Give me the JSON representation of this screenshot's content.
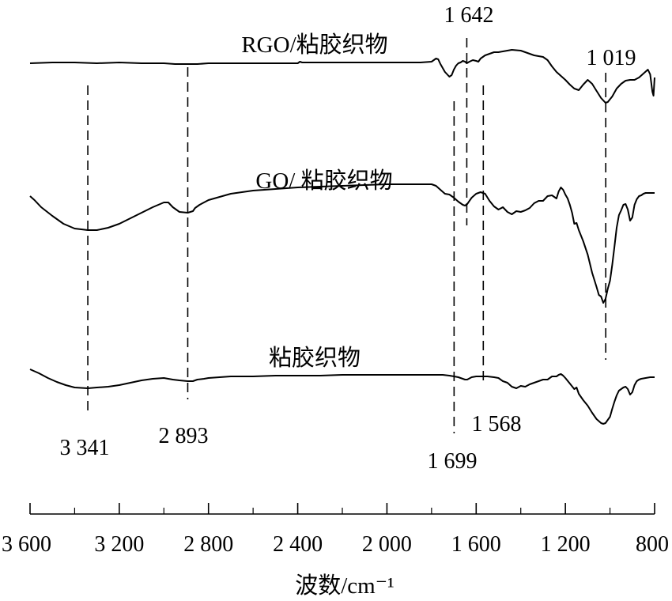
{
  "chart_data": {
    "type": "line",
    "title": "",
    "xlabel": "波数/cm⁻¹",
    "ylabel": "",
    "xlim": [
      3600,
      800
    ],
    "x_reversed": true,
    "grid": false,
    "x_ticks": [
      3600,
      3200,
      2800,
      2400,
      2000,
      1600,
      1200,
      800
    ],
    "x_tick_labels": [
      "3 600",
      "3 200",
      "2 800",
      "2 400",
      "2 000",
      "1 600",
      "1 200",
      "800"
    ],
    "x_minor_ticks": [
      3400,
      3000,
      2600,
      2200,
      1800,
      1400,
      1000
    ],
    "series": [
      {
        "name": "RGO/粘胶织物",
        "points": [
          [
            3600,
            72
          ],
          [
            3500,
            71
          ],
          [
            3400,
            71
          ],
          [
            3300,
            72
          ],
          [
            3200,
            71
          ],
          [
            3100,
            72
          ],
          [
            3000,
            72
          ],
          [
            2950,
            73
          ],
          [
            2900,
            73
          ],
          [
            2850,
            73
          ],
          [
            2800,
            72
          ],
          [
            2700,
            72
          ],
          [
            2600,
            72
          ],
          [
            2500,
            72
          ],
          [
            2400,
            72
          ],
          [
            2390,
            70
          ],
          [
            2380,
            71
          ],
          [
            2360,
            71
          ],
          [
            2300,
            71
          ],
          [
            2200,
            71
          ],
          [
            2100,
            71
          ],
          [
            2000,
            71
          ],
          [
            1950,
            71
          ],
          [
            1900,
            71
          ],
          [
            1850,
            71
          ],
          [
            1800,
            70
          ],
          [
            1780,
            66
          ],
          [
            1770,
            67
          ],
          [
            1760,
            73
          ],
          [
            1740,
            83
          ],
          [
            1720,
            89
          ],
          [
            1710,
            87
          ],
          [
            1700,
            80
          ],
          [
            1690,
            75
          ],
          [
            1680,
            72
          ],
          [
            1670,
            71
          ],
          [
            1660,
            69
          ],
          [
            1650,
            70
          ],
          [
            1642,
            72
          ],
          [
            1630,
            70
          ],
          [
            1615,
            68
          ],
          [
            1600,
            69
          ],
          [
            1590,
            70
          ],
          [
            1580,
            66
          ],
          [
            1560,
            62
          ],
          [
            1540,
            60
          ],
          [
            1520,
            58
          ],
          [
            1500,
            58
          ],
          [
            1480,
            57
          ],
          [
            1460,
            56
          ],
          [
            1440,
            55
          ],
          [
            1400,
            56
          ],
          [
            1370,
            59
          ],
          [
            1340,
            62
          ],
          [
            1300,
            64
          ],
          [
            1280,
            68
          ],
          [
            1260,
            76
          ],
          [
            1240,
            83
          ],
          [
            1220,
            88
          ],
          [
            1200,
            93
          ],
          [
            1180,
            99
          ],
          [
            1160,
            104
          ],
          [
            1140,
            106
          ],
          [
            1120,
            99
          ],
          [
            1100,
            93
          ],
          [
            1080,
            98
          ],
          [
            1060,
            107
          ],
          [
            1040,
            116
          ],
          [
            1020,
            122
          ],
          [
            1010,
            121
          ],
          [
            990,
            114
          ],
          [
            970,
            104
          ],
          [
            950,
            98
          ],
          [
            930,
            94
          ],
          [
            910,
            93
          ],
          [
            890,
            93
          ],
          [
            870,
            90
          ],
          [
            850,
            85
          ],
          [
            830,
            80
          ],
          [
            820,
            86
          ],
          [
            810,
            108
          ],
          [
            805,
            113
          ],
          [
            800,
            90
          ]
        ]
      },
      {
        "name": "GO/ 粘胶织物",
        "points": [
          [
            3600,
            78
          ],
          [
            3580,
            83
          ],
          [
            3550,
            92
          ],
          [
            3500,
            103
          ],
          [
            3450,
            113
          ],
          [
            3400,
            119
          ],
          [
            3341,
            121
          ],
          [
            3300,
            121
          ],
          [
            3250,
            118
          ],
          [
            3200,
            113
          ],
          [
            3150,
            106
          ],
          [
            3100,
            99
          ],
          [
            3050,
            92
          ],
          [
            3000,
            86
          ],
          [
            2980,
            86
          ],
          [
            2960,
            92
          ],
          [
            2930,
            98
          ],
          [
            2893,
            99
          ],
          [
            2870,
            97
          ],
          [
            2860,
            93
          ],
          [
            2840,
            89
          ],
          [
            2800,
            83
          ],
          [
            2750,
            79
          ],
          [
            2700,
            75
          ],
          [
            2650,
            73
          ],
          [
            2600,
            71
          ],
          [
            2500,
            69
          ],
          [
            2400,
            67
          ],
          [
            2300,
            66
          ],
          [
            2200,
            65
          ],
          [
            2100,
            64
          ],
          [
            2000,
            63
          ],
          [
            1900,
            63
          ],
          [
            1850,
            63
          ],
          [
            1800,
            63
          ],
          [
            1780,
            65
          ],
          [
            1760,
            70
          ],
          [
            1740,
            75
          ],
          [
            1720,
            76
          ],
          [
            1700,
            80
          ],
          [
            1680,
            85
          ],
          [
            1660,
            89
          ],
          [
            1650,
            90
          ],
          [
            1640,
            88
          ],
          [
            1620,
            80
          ],
          [
            1600,
            75
          ],
          [
            1580,
            73
          ],
          [
            1560,
            75
          ],
          [
            1540,
            84
          ],
          [
            1520,
            91
          ],
          [
            1500,
            95
          ],
          [
            1480,
            92
          ],
          [
            1460,
            98
          ],
          [
            1440,
            101
          ],
          [
            1420,
            97
          ],
          [
            1400,
            98
          ],
          [
            1380,
            96
          ],
          [
            1360,
            93
          ],
          [
            1340,
            87
          ],
          [
            1320,
            84
          ],
          [
            1300,
            84
          ],
          [
            1280,
            78
          ],
          [
            1260,
            77
          ],
          [
            1240,
            81
          ],
          [
            1230,
            72
          ],
          [
            1220,
            67
          ],
          [
            1210,
            70
          ],
          [
            1200,
            76
          ],
          [
            1190,
            81
          ],
          [
            1180,
            89
          ],
          [
            1170,
            99
          ],
          [
            1160,
            113
          ],
          [
            1150,
            112
          ],
          [
            1140,
            121
          ],
          [
            1120,
            135
          ],
          [
            1100,
            152
          ],
          [
            1080,
            175
          ],
          [
            1060,
            193
          ],
          [
            1050,
            203
          ],
          [
            1040,
            205
          ],
          [
            1030,
            213
          ],
          [
            1020,
            208
          ],
          [
            1010,
            195
          ],
          [
            1000,
            185
          ],
          [
            990,
            165
          ],
          [
            980,
            142
          ],
          [
            970,
            118
          ],
          [
            960,
            102
          ],
          [
            950,
            96
          ],
          [
            940,
            89
          ],
          [
            930,
            88
          ],
          [
            920,
            95
          ],
          [
            910,
            109
          ],
          [
            900,
            105
          ],
          [
            890,
            89
          ],
          [
            880,
            82
          ],
          [
            870,
            78
          ],
          [
            860,
            77
          ],
          [
            850,
            75
          ],
          [
            840,
            74
          ],
          [
            820,
            74
          ],
          [
            800,
            74
          ]
        ]
      },
      {
        "name": "粘胶织物",
        "points": [
          [
            3600,
            57
          ],
          [
            3560,
            62
          ],
          [
            3520,
            68
          ],
          [
            3480,
            73
          ],
          [
            3440,
            77
          ],
          [
            3400,
            80
          ],
          [
            3341,
            81
          ],
          [
            3300,
            80
          ],
          [
            3250,
            79
          ],
          [
            3200,
            77
          ],
          [
            3150,
            74
          ],
          [
            3100,
            71
          ],
          [
            3050,
            69
          ],
          [
            3000,
            68
          ],
          [
            2960,
            70
          ],
          [
            2930,
            71
          ],
          [
            2893,
            72
          ],
          [
            2870,
            72
          ],
          [
            2850,
            70
          ],
          [
            2820,
            69
          ],
          [
            2800,
            68
          ],
          [
            2750,
            67
          ],
          [
            2700,
            66
          ],
          [
            2650,
            66
          ],
          [
            2600,
            66
          ],
          [
            2500,
            65
          ],
          [
            2400,
            65
          ],
          [
            2300,
            65
          ],
          [
            2200,
            64
          ],
          [
            2100,
            64
          ],
          [
            2000,
            64
          ],
          [
            1900,
            64
          ],
          [
            1800,
            64
          ],
          [
            1750,
            64
          ],
          [
            1720,
            65
          ],
          [
            1699,
            66
          ],
          [
            1680,
            67
          ],
          [
            1660,
            69
          ],
          [
            1650,
            70
          ],
          [
            1640,
            70
          ],
          [
            1620,
            67
          ],
          [
            1600,
            66
          ],
          [
            1580,
            66
          ],
          [
            1568,
            66
          ],
          [
            1550,
            66
          ],
          [
            1520,
            67
          ],
          [
            1500,
            68
          ],
          [
            1480,
            72
          ],
          [
            1460,
            74
          ],
          [
            1440,
            79
          ],
          [
            1420,
            81
          ],
          [
            1400,
            78
          ],
          [
            1380,
            79
          ],
          [
            1360,
            76
          ],
          [
            1340,
            74
          ],
          [
            1320,
            72
          ],
          [
            1300,
            70
          ],
          [
            1280,
            70
          ],
          [
            1260,
            66
          ],
          [
            1240,
            66
          ],
          [
            1230,
            64
          ],
          [
            1220,
            63
          ],
          [
            1210,
            65
          ],
          [
            1200,
            68
          ],
          [
            1180,
            75
          ],
          [
            1160,
            82
          ],
          [
            1150,
            80
          ],
          [
            1140,
            88
          ],
          [
            1120,
            96
          ],
          [
            1100,
            103
          ],
          [
            1080,
            112
          ],
          [
            1060,
            120
          ],
          [
            1040,
            125
          ],
          [
            1030,
            126
          ],
          [
            1020,
            125
          ],
          [
            1000,
            117
          ],
          [
            990,
            107
          ],
          [
            980,
            98
          ],
          [
            970,
            90
          ],
          [
            960,
            84
          ],
          [
            950,
            82
          ],
          [
            940,
            80
          ],
          [
            930,
            79
          ],
          [
            920,
            82
          ],
          [
            910,
            89
          ],
          [
            900,
            86
          ],
          [
            890,
            77
          ],
          [
            880,
            72
          ],
          [
            870,
            70
          ],
          [
            860,
            69
          ],
          [
            840,
            68
          ],
          [
            820,
            67
          ],
          [
            800,
            67
          ]
        ]
      }
    ],
    "series_label_text": [
      "RGO/粘胶织物",
      "GO/ 粘胶织物",
      "粘胶织物"
    ],
    "guide_lines": [
      {
        "x": 3341,
        "label": "3 341"
      },
      {
        "x": 2893,
        "label": "2 893"
      },
      {
        "x": 1699,
        "label": "1 699"
      },
      {
        "x": 1642,
        "label": "1 642"
      },
      {
        "x": 1568,
        "label": "1 568"
      },
      {
        "x": 1019,
        "label": "1 019"
      }
    ]
  }
}
